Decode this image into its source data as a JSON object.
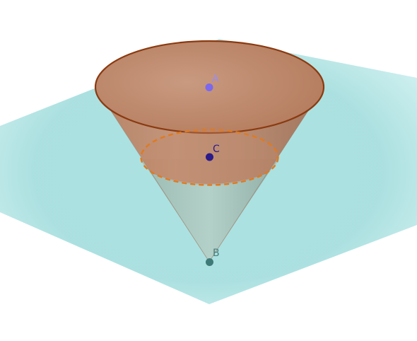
{
  "scene": {
    "plane_color": "#9fdcdc",
    "cone_fill": "#c4896a",
    "cone_outline": "#8b3a10",
    "section_color": "#e07a20",
    "lower_cone_fill": "#a9c7bd"
  },
  "points": {
    "a": {
      "label": "A",
      "color": "#7b68ee"
    },
    "c": {
      "label": "C",
      "color": "#2a1a8a"
    },
    "b": {
      "label": "B",
      "color": "#3e7a78"
    }
  }
}
